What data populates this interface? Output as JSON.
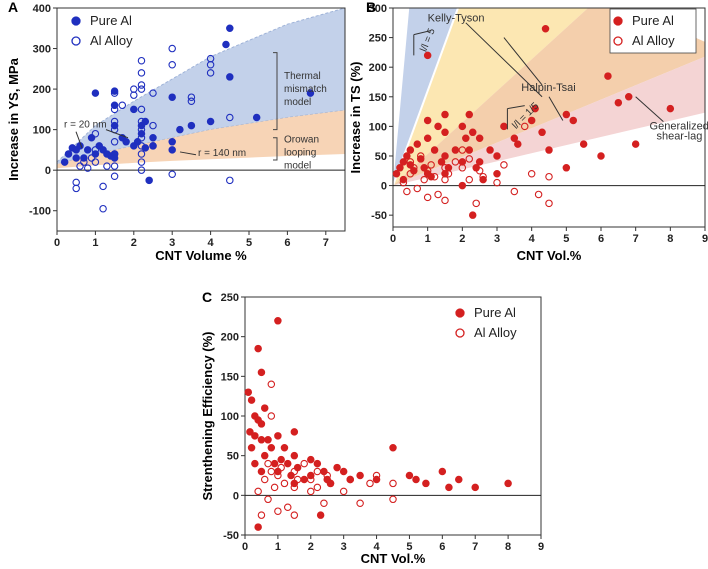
{
  "chart_data": [
    {
      "panel": "A",
      "type": "scatter",
      "xlabel": "CNT Volume %",
      "ylabel": "Increase in YS, MPa",
      "xlim": [
        0,
        7.5
      ],
      "ylim": [
        -150,
        400
      ],
      "xticks": [
        0,
        1,
        2,
        3,
        4,
        5,
        6,
        7
      ],
      "yticks": [
        -100,
        0,
        100,
        200,
        300,
        400
      ],
      "legend": [
        "Pure Al",
        "Al Alloy"
      ],
      "colors": {
        "filled": "#1f2fbf",
        "open": "#1f2fbf",
        "band_blue": "#b8c9e6",
        "band_orange": "#f6cfae"
      },
      "bands": [
        {
          "name": "Thermal mismatch model",
          "label_lines": [
            "Thermal",
            "mismatch",
            "model"
          ],
          "upper": [
            [
              0,
              20
            ],
            [
              1,
              110
            ],
            [
              2,
              170
            ],
            [
              3,
              225
            ],
            [
              4,
              280
            ],
            [
              5,
              320
            ],
            [
              6,
              360
            ],
            [
              7.5,
              400
            ]
          ],
          "lower": [
            [
              0,
              15
            ],
            [
              1,
              40
            ],
            [
              2,
              60
            ],
            [
              3,
              80
            ],
            [
              4,
              100
            ],
            [
              5,
              115
            ],
            [
              6,
              130
            ],
            [
              7.5,
              148
            ]
          ]
        },
        {
          "name": "Orowan looping model",
          "label_lines": [
            "Orowan",
            "looping",
            "model"
          ],
          "upper": [
            [
              0,
              15
            ],
            [
              1,
              40
            ],
            [
              2,
              60
            ],
            [
              3,
              80
            ],
            [
              4,
              100
            ],
            [
              5,
              115
            ],
            [
              6,
              130
            ],
            [
              7.5,
              148
            ]
          ],
          "lower": [
            [
              0,
              5
            ],
            [
              1,
              12
            ],
            [
              2,
              18
            ],
            [
              3,
              23
            ],
            [
              4,
              27
            ],
            [
              5,
              31
            ],
            [
              6,
              35
            ],
            [
              7.5,
              40
            ]
          ]
        }
      ],
      "annotations": [
        "r = 20 nm",
        "r = 140 nm"
      ],
      "series": [
        {
          "name": "Pure Al",
          "marker": "filled",
          "x": [
            0.2,
            0.3,
            0.4,
            0.5,
            0.5,
            0.6,
            0.7,
            0.8,
            0.9,
            1.0,
            1.0,
            1.1,
            1.2,
            1.3,
            1.4,
            1.5,
            1.5,
            1.5,
            1.5,
            1.5,
            1.7,
            1.8,
            2.0,
            2.0,
            2.1,
            2.2,
            2.2,
            2.3,
            2.3,
            2.4,
            2.5,
            2.5,
            3.0,
            3.0,
            3.0,
            3.2,
            3.5,
            4.0,
            4.4,
            4.5,
            4.5,
            5.2,
            6.6
          ],
          "y": [
            20,
            40,
            55,
            30,
            50,
            60,
            30,
            50,
            80,
            190,
            40,
            60,
            50,
            40,
            35,
            195,
            160,
            110,
            40,
            30,
            80,
            70,
            150,
            60,
            70,
            90,
            110,
            120,
            55,
            -25,
            80,
            60,
            50,
            70,
            180,
            100,
            110,
            120,
            310,
            350,
            230,
            130,
            190
          ]
        },
        {
          "name": "Al Alloy",
          "marker": "open",
          "x": [
            0.5,
            0.5,
            0.6,
            0.7,
            0.8,
            0.9,
            1.0,
            1.0,
            1.0,
            1.2,
            1.2,
            1.3,
            1.5,
            1.5,
            1.5,
            1.5,
            1.5,
            1.5,
            1.5,
            1.5,
            1.7,
            2.0,
            2.0,
            2.2,
            2.2,
            2.2,
            2.2,
            2.2,
            2.2,
            2.2,
            2.2,
            2.2,
            2.2,
            2.2,
            2.2,
            2.5,
            2.5,
            2.5,
            3.0,
            3.0,
            3.0,
            3.5,
            3.5,
            4.0,
            4.0,
            4.0,
            4.5,
            4.5
          ],
          "y": [
            -30,
            -45,
            10,
            20,
            5,
            30,
            90,
            50,
            20,
            -40,
            -95,
            10,
            190,
            150,
            120,
            100,
            70,
            40,
            10,
            -15,
            160,
            200,
            185,
            270,
            240,
            210,
            200,
            150,
            120,
            100,
            80,
            60,
            40,
            20,
            0,
            190,
            110,
            60,
            300,
            260,
            -10,
            180,
            170,
            275,
            260,
            240,
            130,
            -25
          ]
        }
      ]
    },
    {
      "panel": "B",
      "type": "scatter",
      "xlabel": "CNT Vol.%",
      "ylabel": "Increase in TS (%)",
      "xlim": [
        0,
        9
      ],
      "ylim": [
        -70,
        300
      ],
      "xticks": [
        0,
        1,
        2,
        3,
        4,
        5,
        6,
        7,
        8,
        9
      ],
      "yticks": [
        -50,
        0,
        50,
        100,
        150,
        200,
        250,
        300
      ],
      "legend": [
        "Pure Al",
        "Al Alloy"
      ],
      "colors": {
        "filled": "#d42020",
        "open": "#d42020",
        "band_blue": "#b8c9e6",
        "band_yellow": "#fbe3a4",
        "band_orange": "#f2c79d",
        "band_pink": "#f2cccc"
      },
      "model_labels": [
        "Kelly-Tyson",
        "Halpin-Tsai",
        "Generalized",
        "shear-lag"
      ],
      "ratio_labels": [
        "l/l = 5",
        "l/l = 1/5"
      ],
      "series": [
        {
          "name": "Pure Al",
          "marker": "filled",
          "x": [
            0.1,
            0.2,
            0.3,
            0.3,
            0.4,
            0.5,
            0.5,
            0.6,
            0.7,
            0.8,
            0.9,
            1.0,
            1.0,
            1.0,
            1.0,
            1.1,
            1.2,
            1.3,
            1.4,
            1.5,
            1.5,
            1.5,
            1.5,
            1.6,
            1.8,
            2.0,
            2.0,
            2.0,
            2.1,
            2.2,
            2.2,
            2.3,
            2.3,
            2.4,
            2.5,
            2.5,
            2.6,
            2.8,
            3.0,
            3.0,
            3.2,
            3.5,
            3.6,
            4.0,
            4.1,
            4.3,
            4.4,
            4.5,
            5.0,
            5.0,
            5.2,
            5.5,
            6.0,
            6.2,
            6.5,
            6.8,
            7.0,
            8.0
          ],
          "y": [
            20,
            30,
            40,
            10,
            50,
            35,
            60,
            25,
            70,
            45,
            30,
            220,
            110,
            80,
            20,
            15,
            60,
            100,
            40,
            120,
            90,
            50,
            20,
            30,
            60,
            100,
            40,
            0,
            80,
            120,
            60,
            90,
            -50,
            30,
            80,
            40,
            10,
            60,
            50,
            20,
            100,
            80,
            70,
            110,
            130,
            90,
            265,
            60,
            30,
            120,
            110,
            70,
            50,
            185,
            140,
            150,
            70,
            130
          ]
        },
        {
          "name": "Al Alloy",
          "marker": "open",
          "x": [
            0.3,
            0.4,
            0.5,
            0.5,
            0.6,
            0.7,
            0.8,
            0.9,
            1.0,
            1.0,
            1.1,
            1.2,
            1.3,
            1.5,
            1.5,
            1.5,
            1.6,
            1.8,
            2.0,
            2.0,
            2.2,
            2.2,
            2.4,
            2.5,
            2.6,
            3.0,
            3.2,
            3.5,
            3.8,
            4.0,
            4.2,
            4.5,
            4.5
          ],
          "y": [
            5,
            -10,
            20,
            40,
            30,
            -5,
            50,
            10,
            25,
            -20,
            35,
            15,
            -15,
            30,
            10,
            -25,
            20,
            40,
            60,
            30,
            10,
            45,
            -30,
            25,
            15,
            5,
            35,
            -10,
            100,
            20,
            -15,
            15,
            -30
          ]
        }
      ]
    },
    {
      "panel": "C",
      "type": "scatter",
      "xlabel": "CNT Vol.%",
      "ylabel": "Strenthening Efficiency (%)",
      "xlim": [
        0,
        9
      ],
      "ylim": [
        -50,
        250
      ],
      "xticks": [
        0,
        1,
        2,
        3,
        4,
        5,
        6,
        7,
        8,
        9
      ],
      "yticks": [
        -50,
        0,
        50,
        100,
        150,
        200,
        250
      ],
      "legend": [
        "Pure Al",
        "Al Alloy"
      ],
      "colors": {
        "filled": "#d42020",
        "open": "#d42020"
      },
      "series": [
        {
          "name": "Pure Al",
          "marker": "filled",
          "x": [
            0.1,
            0.15,
            0.2,
            0.2,
            0.3,
            0.3,
            0.4,
            0.4,
            0.5,
            0.5,
            0.5,
            0.6,
            0.6,
            0.7,
            0.8,
            0.9,
            1.0,
            1.0,
            1.0,
            1.1,
            1.2,
            1.3,
            1.4,
            1.5,
            1.5,
            1.5,
            1.6,
            1.8,
            2.0,
            2.0,
            2.2,
            2.3,
            2.4,
            2.5,
            2.6,
            2.8,
            3.0,
            3.2,
            3.5,
            4.0,
            4.5,
            5.0,
            5.2,
            5.5,
            6.0,
            6.2,
            6.5,
            7.0,
            8.0,
            0.3,
            0.4,
            0.5
          ],
          "y": [
            130,
            80,
            120,
            60,
            75,
            40,
            185,
            -40,
            155,
            90,
            30,
            110,
            50,
            70,
            60,
            40,
            220,
            75,
            30,
            45,
            60,
            40,
            25,
            80,
            50,
            15,
            35,
            20,
            45,
            25,
            40,
            -25,
            30,
            20,
            15,
            35,
            30,
            20,
            25,
            20,
            60,
            25,
            20,
            15,
            30,
            10,
            20,
            10,
            15,
            100,
            95,
            70
          ]
        },
        {
          "name": "Al Alloy",
          "marker": "open",
          "x": [
            0.4,
            0.5,
            0.6,
            0.7,
            0.7,
            0.8,
            0.9,
            1.0,
            1.0,
            1.1,
            1.2,
            1.3,
            1.5,
            1.5,
            1.5,
            1.6,
            1.8,
            2.0,
            2.0,
            2.2,
            2.2,
            2.4,
            2.5,
            2.6,
            3.0,
            3.2,
            3.5,
            3.8,
            4.0,
            4.5,
            4.5,
            0.8,
            0.8
          ],
          "y": [
            5,
            -25,
            20,
            40,
            -5,
            30,
            10,
            25,
            -20,
            35,
            15,
            -15,
            30,
            10,
            -25,
            20,
            40,
            20,
            5,
            10,
            30,
            -10,
            25,
            15,
            5,
            20,
            -10,
            15,
            25,
            15,
            -5,
            140,
            100
          ]
        }
      ]
    }
  ]
}
